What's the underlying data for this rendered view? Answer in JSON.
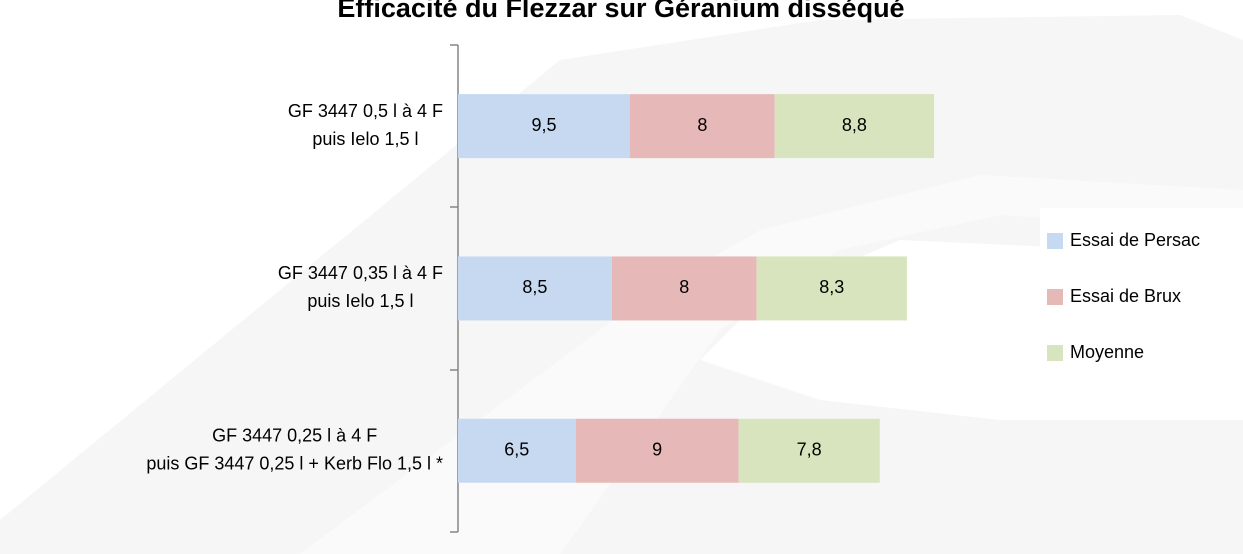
{
  "chart_data": {
    "type": "stacked-bar-horizontal",
    "title": "Efficacité du Flezzar sur Géranium disséqué",
    "categories": [
      [
        "GF 3447 0,5 l à 4 F",
        "puis Ielo  1,5 l"
      ],
      [
        "GF 3447 0,35 l à 4 F",
        "puis Ielo  1,5 l"
      ],
      [
        "GF 3447 0,25 l à 4 F",
        "puis GF 3447 0,25 l + Kerb Flo 1,5 l *"
      ]
    ],
    "series": [
      {
        "name": "Essai de Persac",
        "color": "#c6d9f1",
        "values": [
          9.5,
          8.5,
          6.5
        ],
        "value_labels": [
          "9,5",
          "8,5",
          "6,5"
        ]
      },
      {
        "name": "Essai de Brux",
        "color": "#e6b9b8",
        "values": [
          8,
          8,
          9
        ],
        "value_labels": [
          "8",
          "8",
          "9"
        ]
      },
      {
        "name": "Moyenne",
        "color": "#d7e4bd",
        "values": [
          8.8,
          8.3,
          7.8
        ],
        "value_labels": [
          "8,8",
          "8,3",
          "7,8"
        ]
      }
    ],
    "xlim": [
      0,
      30
    ],
    "legend": "right"
  }
}
